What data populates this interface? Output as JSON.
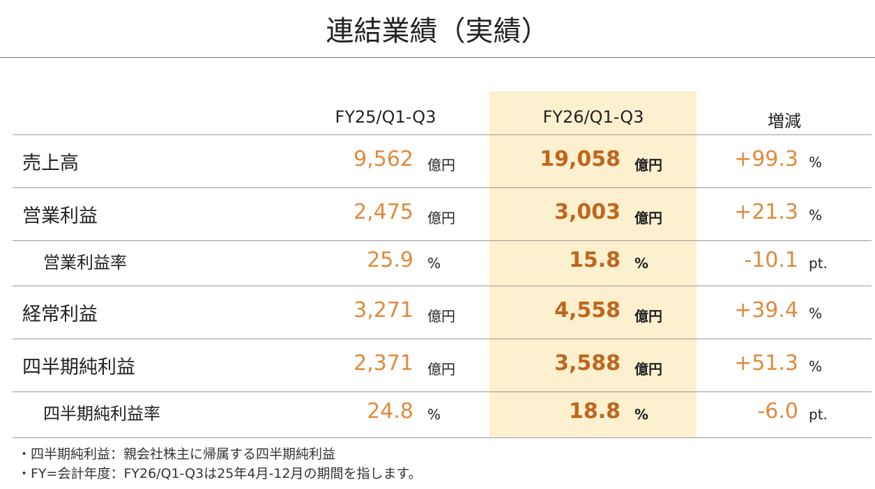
{
  "header": {
    "title": "連結業績（実績）"
  },
  "table": {
    "columns": [
      "FY25/Q1-Q3",
      "FY26/Q1-Q3",
      "増減"
    ],
    "rows": [
      [
        "売上高",
        "9,562",
        "億円",
        "19,058",
        "億円",
        "+99.3",
        "%"
      ],
      [
        "営業利益",
        "2,475",
        "億円",
        "3,003",
        "億円",
        "+21.3",
        "%"
      ],
      [
        "営業利益率",
        "25.9",
        "%",
        "15.8",
        "%",
        "-10.1",
        "pt."
      ],
      [
        "経常利益",
        "3,271",
        "億円",
        "4,558",
        "億円",
        "+39.4",
        "%"
      ],
      [
        "四半期純利益",
        "2,371",
        "億円",
        "3,588",
        "億円",
        "+51.3",
        "%"
      ],
      [
        "四半期純利益率",
        "24.8",
        "%",
        "18.8",
        "%",
        "-6.0",
        "pt."
      ]
    ]
  },
  "notes": [
    "・四半期純利益：親会社株主に帰属する四半期純利益",
    "・FY=会計年度：FY26/Q1-Q3は25年4月-12月の期間を指します。"
  ]
}
